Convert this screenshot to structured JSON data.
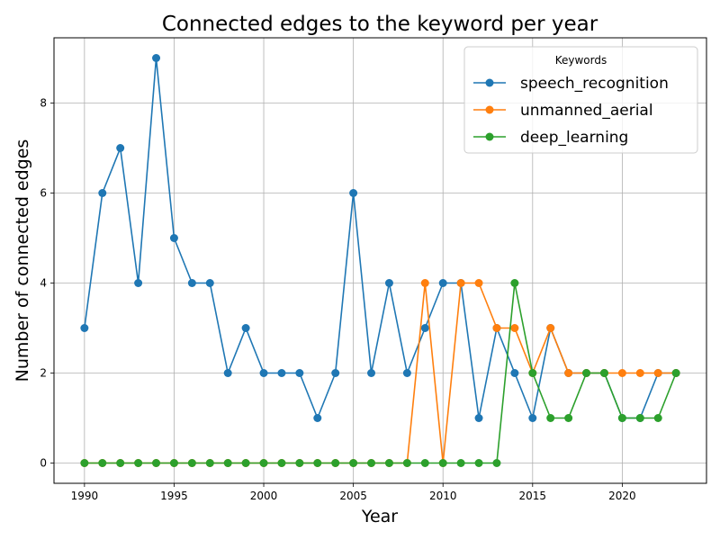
{
  "chart_data": {
    "type": "line",
    "title": "Connected edges to the keyword per year",
    "xlabel": "Year",
    "ylabel": "Number of connected edges",
    "xlim": [
      1988.3,
      2024.7
    ],
    "ylim": [
      -0.45,
      9.45
    ],
    "xticks": [
      1990,
      1995,
      2000,
      2005,
      2010,
      2015,
      2020
    ],
    "yticks": [
      0,
      2,
      4,
      6,
      8
    ],
    "grid": true,
    "legend": {
      "title": "Keywords",
      "position": "top-right"
    },
    "x": [
      1990,
      1991,
      1992,
      1993,
      1994,
      1995,
      1996,
      1997,
      1998,
      1999,
      2000,
      2001,
      2002,
      2003,
      2004,
      2005,
      2006,
      2007,
      2008,
      2009,
      2010,
      2011,
      2012,
      2013,
      2014,
      2015,
      2016,
      2017,
      2018,
      2019,
      2020,
      2021,
      2022,
      2023
    ],
    "series": [
      {
        "name": "speech_recognition",
        "color": "#1f77b4",
        "values": [
          3,
          6,
          7,
          4,
          9,
          5,
          4,
          4,
          2,
          3,
          2,
          2,
          2,
          1,
          2,
          6,
          2,
          4,
          2,
          3,
          4,
          4,
          1,
          3,
          2,
          1,
          3,
          2,
          2,
          2,
          1,
          1,
          2,
          2
        ]
      },
      {
        "name": "unmanned_aerial",
        "color": "#ff7f0e",
        "values": [
          0,
          0,
          0,
          0,
          0,
          0,
          0,
          0,
          0,
          0,
          0,
          0,
          0,
          0,
          0,
          0,
          0,
          0,
          0,
          4,
          0,
          4,
          4,
          3,
          3,
          2,
          3,
          2,
          2,
          2,
          2,
          2,
          2,
          2
        ]
      },
      {
        "name": "deep_learning",
        "color": "#2ca02c",
        "values": [
          0,
          0,
          0,
          0,
          0,
          0,
          0,
          0,
          0,
          0,
          0,
          0,
          0,
          0,
          0,
          0,
          0,
          0,
          0,
          0,
          0,
          0,
          0,
          0,
          4,
          2,
          1,
          1,
          2,
          2,
          1,
          1,
          1,
          2
        ]
      }
    ]
  }
}
